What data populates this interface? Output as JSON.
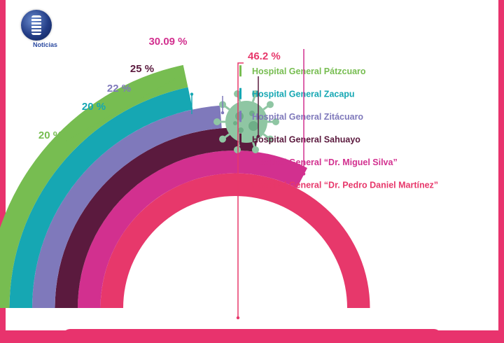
{
  "logo": {
    "text": "Noticias"
  },
  "colors": {
    "background": "#e8336d",
    "virus": "#8fc6a3"
  },
  "chart_data": {
    "type": "bar",
    "title": "",
    "categories": [
      "Hospital General “Dr. Pedro Daniel Martínez”",
      "Hospital General “Dr. Miguel Silva”",
      "Hospital General Sahuayo",
      "Hospital General Zitácuaro",
      "Hospital General Zacapu",
      "Hospital General Pátzcuaro"
    ],
    "values": [
      46.2,
      30.09,
      25,
      22,
      20,
      20
    ],
    "value_labels": [
      "46.2 %",
      "30.09 %",
      "25 %",
      "22 %",
      "20 %",
      "20 %"
    ],
    "colors": [
      "#e7386b",
      "#d2308f",
      "#5b1a3e",
      "#7f79bb",
      "#16a7b3",
      "#77bd51"
    ],
    "legend_position": "center-right",
    "grid": false
  }
}
